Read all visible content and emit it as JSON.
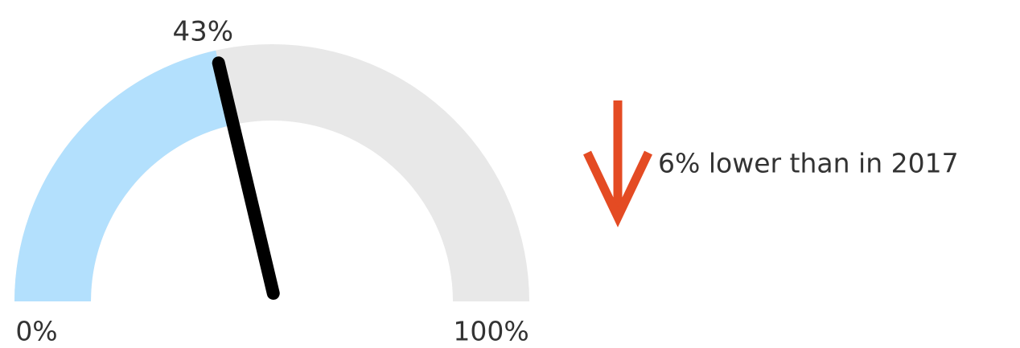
{
  "chart_data": {
    "type": "gauge",
    "values": [
      43
    ],
    "value_labels": [
      "43%"
    ],
    "ylim": [
      0,
      100
    ],
    "yticks": [
      {
        "value": 0,
        "label": "0%"
      },
      {
        "value": 100,
        "label": "100%"
      }
    ],
    "color": "#b3e0fd",
    "track_color": "#e8e8e8",
    "needle_color": "#000000",
    "annotation": "6% lower than in 2017"
  }
}
